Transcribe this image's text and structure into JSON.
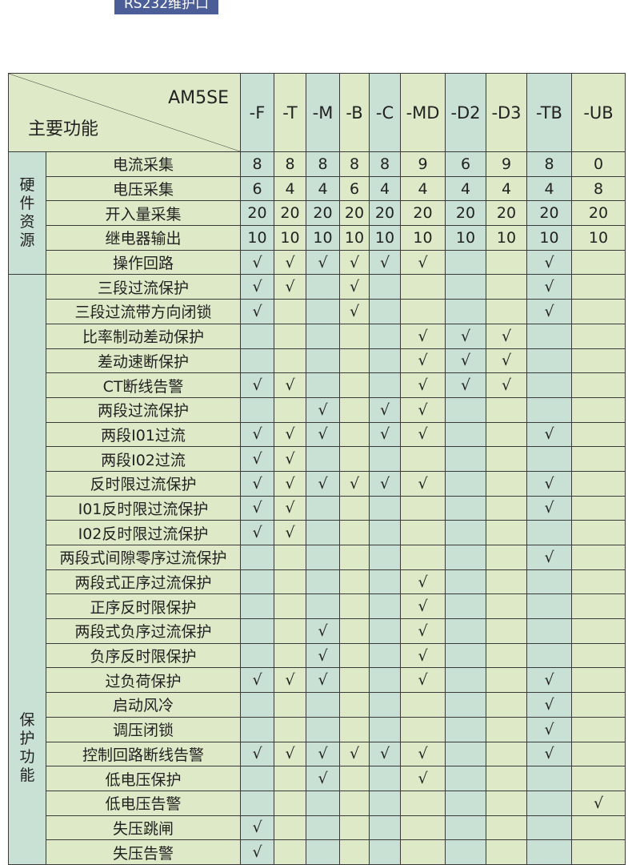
{
  "top_button": "RS232维护口",
  "header": {
    "model": "AM5SE",
    "function_label": "主要功能",
    "columns": [
      "-F",
      "-T",
      "-M",
      "-B",
      "-C",
      "-MD",
      "-D2",
      "-D3",
      "-TB",
      "-UB"
    ]
  },
  "colors": {
    "green": "#deeac7",
    "teal": "#c9e1d5",
    "button": "#4b5e98"
  },
  "groups": [
    {
      "label": "硬件资源",
      "rows": [
        {
          "feature": "电流采集",
          "cells": [
            "8",
            "8",
            "8",
            "8",
            "8",
            "9",
            "6",
            "9",
            "8",
            "0"
          ]
        },
        {
          "feature": "电压采集",
          "cells": [
            "6",
            "4",
            "4",
            "6",
            "4",
            "4",
            "4",
            "4",
            "4",
            "8"
          ]
        },
        {
          "feature": "开入量采集",
          "cells": [
            "20",
            "20",
            "20",
            "20",
            "20",
            "20",
            "20",
            "20",
            "20",
            "20"
          ]
        },
        {
          "feature": "继电器输出",
          "cells": [
            "10",
            "10",
            "10",
            "10",
            "10",
            "10",
            "10",
            "10",
            "10",
            "10"
          ]
        },
        {
          "feature": "操作回路",
          "cells": [
            "√",
            "√",
            "√",
            "√",
            "√",
            "√",
            "",
            "",
            "√",
            ""
          ]
        }
      ]
    },
    {
      "label": "保护功能",
      "rows": [
        {
          "feature": "三段过流保护",
          "cells": [
            "√",
            "√",
            "",
            "√",
            "",
            "",
            "",
            "",
            "√",
            ""
          ]
        },
        {
          "feature": "三段过流带方向闭锁",
          "cells": [
            "√",
            "",
            "",
            "√",
            "",
            "",
            "",
            "",
            "√",
            ""
          ]
        },
        {
          "feature": "比率制动差动保护",
          "cells": [
            "",
            "",
            "",
            "",
            "",
            "√",
            "√",
            "√",
            "",
            ""
          ]
        },
        {
          "feature": "差动速断保护",
          "cells": [
            "",
            "",
            "",
            "",
            "",
            "√",
            "√",
            "√",
            "",
            ""
          ]
        },
        {
          "feature": "CT断线告警",
          "cells": [
            "√",
            "√",
            "",
            "",
            "",
            "√",
            "√",
            "√",
            "",
            ""
          ]
        },
        {
          "feature": "两段过流保护",
          "cells": [
            "",
            "",
            "√",
            "",
            "√",
            "√",
            "",
            "",
            "",
            ""
          ]
        },
        {
          "feature": "两段I01过流",
          "cells": [
            "√",
            "√",
            "√",
            "",
            "√",
            "√",
            "",
            "",
            "√",
            ""
          ]
        },
        {
          "feature": "两段I02过流",
          "cells": [
            "√",
            "√",
            "",
            "",
            "",
            "",
            "",
            "",
            "",
            ""
          ]
        },
        {
          "feature": "反时限过流保护",
          "cells": [
            "√",
            "√",
            "√",
            "√",
            "√",
            "√",
            "",
            "",
            "√",
            ""
          ]
        },
        {
          "feature": "I01反时限过流保护",
          "cells": [
            "√",
            "√",
            "",
            "",
            "",
            "",
            "",
            "",
            "√",
            ""
          ]
        },
        {
          "feature": "I02反时限过流保护",
          "cells": [
            "√",
            "√",
            "",
            "",
            "",
            "",
            "",
            "",
            "",
            ""
          ]
        },
        {
          "feature": "两段式间隙零序过流保护",
          "cells": [
            "",
            "",
            "",
            "",
            "",
            "",
            "",
            "",
            "√",
            ""
          ]
        },
        {
          "feature": "两段式正序过流保护",
          "cells": [
            "",
            "",
            "",
            "",
            "",
            "√",
            "",
            "",
            "",
            ""
          ]
        },
        {
          "feature": "正序反时限保护",
          "cells": [
            "",
            "",
            "",
            "",
            "",
            "√",
            "",
            "",
            "",
            ""
          ]
        },
        {
          "feature": "两段式负序过流保护",
          "cells": [
            "",
            "",
            "√",
            "",
            "",
            "√",
            "",
            "",
            "",
            ""
          ]
        },
        {
          "feature": "负序反时限保护",
          "cells": [
            "",
            "",
            "√",
            "",
            "",
            "√",
            "",
            "",
            "",
            ""
          ]
        },
        {
          "feature": "过负荷保护",
          "cells": [
            "√",
            "√",
            "√",
            "",
            "",
            "√",
            "",
            "",
            "√",
            ""
          ]
        },
        {
          "feature": "启动风冷",
          "cells": [
            "",
            "",
            "",
            "",
            "",
            "",
            "",
            "",
            "√",
            ""
          ]
        },
        {
          "feature": "调压闭锁",
          "cells": [
            "",
            "",
            "",
            "",
            "",
            "",
            "",
            "",
            "√",
            ""
          ]
        },
        {
          "feature": "控制回路断线告警",
          "cells": [
            "√",
            "√",
            "√",
            "√",
            "√",
            "√",
            "",
            "",
            "√",
            ""
          ]
        },
        {
          "feature": "低电压保护",
          "cells": [
            "",
            "",
            "√",
            "",
            "",
            "√",
            "",
            "",
            "",
            ""
          ]
        },
        {
          "feature": "低电压告警",
          "cells": [
            "",
            "",
            "",
            "",
            "",
            "",
            "",
            "",
            "",
            "√"
          ]
        },
        {
          "feature": "失压跳闸",
          "cells": [
            "√",
            "",
            "",
            "",
            "",
            "",
            "",
            "",
            "",
            ""
          ]
        },
        {
          "feature": "失压告警",
          "cells": [
            "√",
            "",
            "",
            "",
            "",
            "",
            "",
            "",
            "",
            ""
          ]
        }
      ]
    }
  ]
}
